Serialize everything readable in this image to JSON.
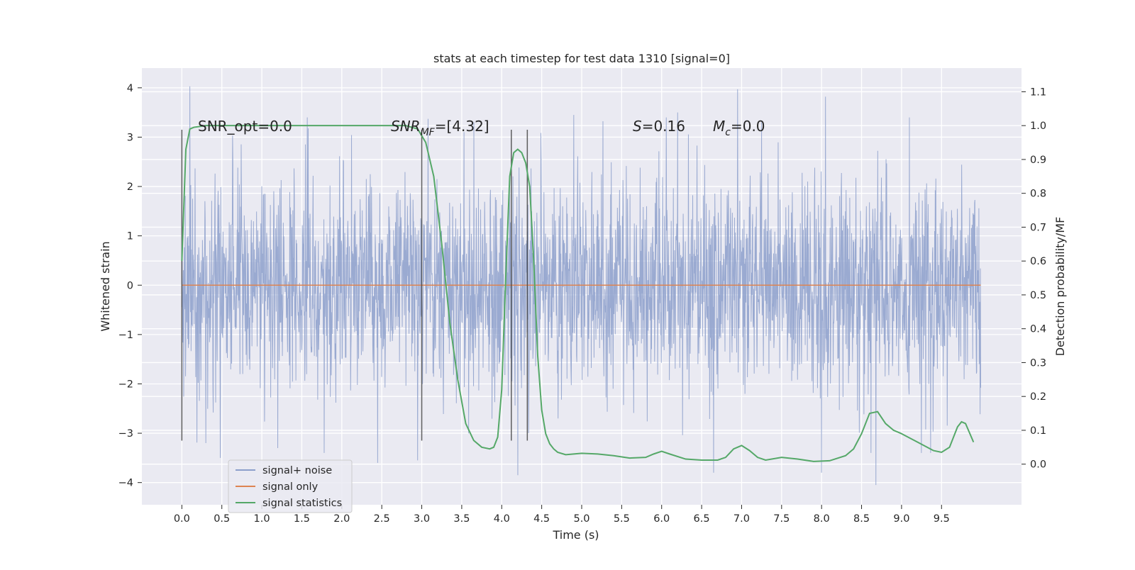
{
  "chart_data": {
    "type": "line",
    "title": "stats at each timestep for test data 1310 [signal=0]",
    "xlabel": "Time (s)",
    "ylabel": "Whitened strain",
    "ylabel_right": "Detection probability/MF",
    "xlim": [
      -0.5,
      10.5
    ],
    "ylim": [
      -4.45,
      4.4
    ],
    "ylim_right": [
      -0.12,
      1.17
    ],
    "grid": true,
    "legend_placement": "lower-left",
    "x_ticks": [
      0.0,
      0.5,
      1.0,
      1.5,
      2.0,
      2.5,
      3.0,
      3.5,
      4.0,
      4.5,
      5.0,
      5.5,
      6.0,
      6.5,
      7.0,
      7.5,
      8.0,
      8.5,
      9.0,
      9.5
    ],
    "x_tick_labels": [
      "0.0",
      "0.5",
      "1.0",
      "1.5",
      "2.0",
      "2.5",
      "3.0",
      "3.5",
      "4.0",
      "4.5",
      "5.0",
      "5.5",
      "6.0",
      "6.5",
      "7.0",
      "7.5",
      "8.0",
      "8.5",
      "9.0",
      "9.5"
    ],
    "y_ticks": [
      4,
      3,
      2,
      1,
      0,
      -1,
      -2,
      -3,
      -4
    ],
    "y_tick_labels": [
      "4",
      "3",
      "2",
      "1",
      "0",
      "−1",
      "−2",
      "−3",
      "−4"
    ],
    "y_right_ticks": [
      1.1,
      1.0,
      0.9,
      0.8,
      0.7,
      0.6,
      0.5,
      0.4,
      0.3,
      0.2,
      0.1,
      0.0
    ],
    "y_right_tick_labels": [
      "1.1",
      "1.0",
      "0.9",
      "0.8",
      "0.7",
      "0.6",
      "0.5",
      "0.4",
      "0.3",
      "0.2",
      "0.1",
      "0.0"
    ],
    "annotations": {
      "snr_opt": "SNR_opt=0.0",
      "snr_mf_label": "SNR",
      "snr_mf_sub": "MF",
      "snr_mf_value": "=[4.32]",
      "s_label": "S",
      "s_value": "=0.16",
      "mc_label": "M",
      "mc_sub": "c",
      "mc_value": "=0.0"
    },
    "vertical_markers": [
      0.0,
      3.0,
      4.12,
      4.32
    ],
    "series": [
      {
        "name": "signal+ noise",
        "color": "#8c9fcb",
        "x_range": [
          0.0,
          9.99
        ],
        "description_values": "whitened noise, roughly within ±2.5 with peaks near ±4",
        "peaks": [
          {
            "x": 0.1,
            "y": 4.03
          },
          {
            "x": 0.3,
            "y": -3.2
          },
          {
            "x": 0.48,
            "y": -3.5
          },
          {
            "x": 1.2,
            "y": -3.3
          },
          {
            "x": 1.78,
            "y": -3.4
          },
          {
            "x": 2.45,
            "y": -3.6
          },
          {
            "x": 2.95,
            "y": -3.55
          },
          {
            "x": 3.65,
            "y": 3.3
          },
          {
            "x": 4.2,
            "y": -3.85
          },
          {
            "x": 4.9,
            "y": 3.45
          },
          {
            "x": 6.95,
            "y": 3.97
          },
          {
            "x": 6.2,
            "y": 3.5
          },
          {
            "x": 6.65,
            "y": -3.8
          },
          {
            "x": 7.25,
            "y": 3.3
          },
          {
            "x": 8.05,
            "y": 3.82
          },
          {
            "x": 8.0,
            "y": -3.8
          },
          {
            "x": 8.68,
            "y": -4.05
          },
          {
            "x": 9.1,
            "y": 3.4
          },
          {
            "x": 9.25,
            "y": -3.4
          }
        ]
      },
      {
        "name": "signal only",
        "color": "#dd8452",
        "x": [
          0.0,
          9.99
        ],
        "y": [
          0.0,
          0.0
        ]
      },
      {
        "name": "signal statistics",
        "color": "#55a868",
        "axis": "right",
        "x": [
          0.0,
          0.05,
          0.1,
          0.15,
          0.3,
          0.6,
          1.0,
          1.5,
          2.0,
          2.5,
          2.8,
          2.95,
          3.05,
          3.15,
          3.25,
          3.35,
          3.45,
          3.55,
          3.65,
          3.75,
          3.85,
          3.9,
          3.95,
          4.0,
          4.05,
          4.1,
          4.15,
          4.2,
          4.25,
          4.3,
          4.35,
          4.4,
          4.45,
          4.5,
          4.55,
          4.6,
          4.65,
          4.7,
          4.8,
          4.9,
          5.0,
          5.2,
          5.4,
          5.6,
          5.8,
          5.9,
          6.0,
          6.1,
          6.3,
          6.5,
          6.7,
          6.8,
          6.9,
          7.0,
          7.1,
          7.2,
          7.3,
          7.5,
          7.7,
          7.9,
          8.1,
          8.3,
          8.4,
          8.5,
          8.6,
          8.7,
          8.8,
          8.9,
          9.0,
          9.2,
          9.4,
          9.5,
          9.6,
          9.7,
          9.75,
          9.8,
          9.9
        ],
        "y": [
          0.6,
          0.93,
          0.99,
          0.995,
          1.0,
          1.0,
          1.0,
          1.0,
          1.0,
          1.0,
          1.0,
          0.99,
          0.95,
          0.85,
          0.65,
          0.42,
          0.25,
          0.12,
          0.07,
          0.05,
          0.045,
          0.05,
          0.08,
          0.22,
          0.55,
          0.85,
          0.92,
          0.93,
          0.92,
          0.89,
          0.82,
          0.6,
          0.32,
          0.16,
          0.09,
          0.06,
          0.045,
          0.035,
          0.028,
          0.03,
          0.032,
          0.03,
          0.025,
          0.018,
          0.02,
          0.03,
          0.038,
          0.03,
          0.015,
          0.012,
          0.012,
          0.02,
          0.045,
          0.055,
          0.04,
          0.02,
          0.012,
          0.02,
          0.015,
          0.008,
          0.01,
          0.025,
          0.045,
          0.09,
          0.15,
          0.155,
          0.12,
          0.1,
          0.09,
          0.065,
          0.04,
          0.035,
          0.05,
          0.11,
          0.125,
          0.12,
          0.065
        ]
      }
    ]
  }
}
